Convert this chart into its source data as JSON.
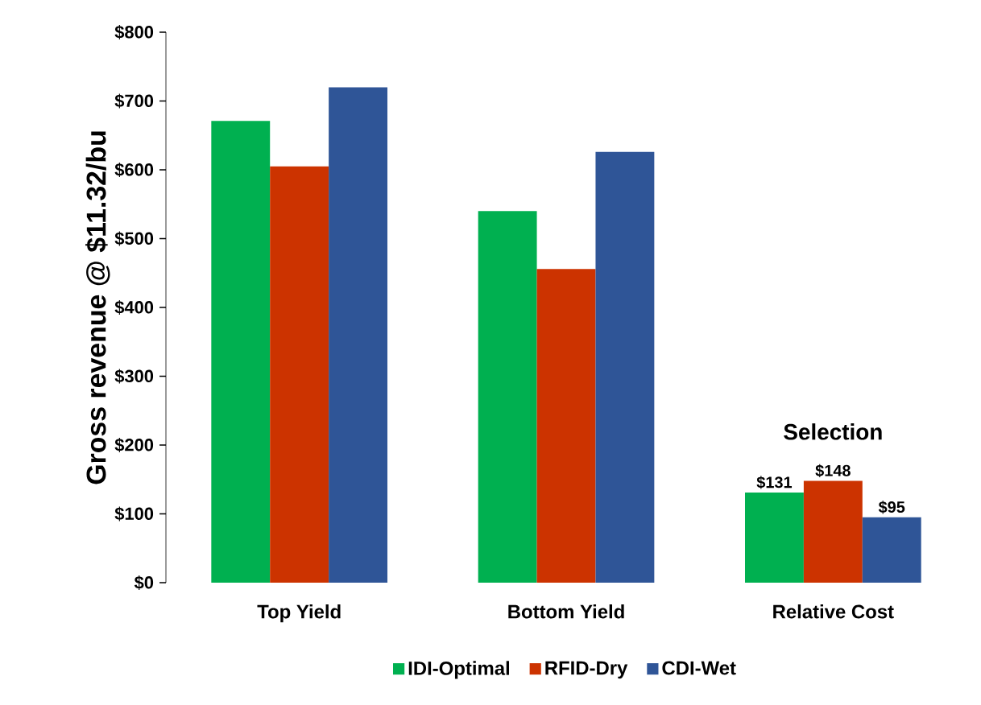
{
  "chart_data": {
    "type": "bar",
    "ylabel": "Gross revenue @ $11.32/bu",
    "categories": [
      "Top Yield",
      "Bottom Yield",
      "Relative Cost"
    ],
    "series": [
      {
        "name": "IDI-Optimal",
        "color": "#00b050",
        "values": [
          671,
          540,
          131
        ],
        "value_labels": [
          null,
          null,
          "$131"
        ]
      },
      {
        "name": "RFID-Dry",
        "color": "#cc3300",
        "values": [
          605,
          456,
          148
        ],
        "value_labels": [
          null,
          null,
          "$148"
        ]
      },
      {
        "name": "CDI-Wet",
        "color": "#2f5597",
        "values": [
          720,
          626,
          95
        ],
        "value_labels": [
          null,
          null,
          "$95"
        ]
      }
    ],
    "ylim": [
      0,
      800
    ],
    "yticks": [
      {
        "value": 0,
        "label": "$0"
      },
      {
        "value": 100,
        "label": "$100"
      },
      {
        "value": 200,
        "label": "$200"
      },
      {
        "value": 300,
        "label": "$300"
      },
      {
        "value": 400,
        "label": "$400"
      },
      {
        "value": 500,
        "label": "$500"
      },
      {
        "value": 600,
        "label": "$600"
      },
      {
        "value": 700,
        "label": "$700"
      },
      {
        "value": 800,
        "label": "$800"
      }
    ],
    "annotations": [
      "Selection"
    ],
    "grid": false,
    "legend": "bottom"
  }
}
